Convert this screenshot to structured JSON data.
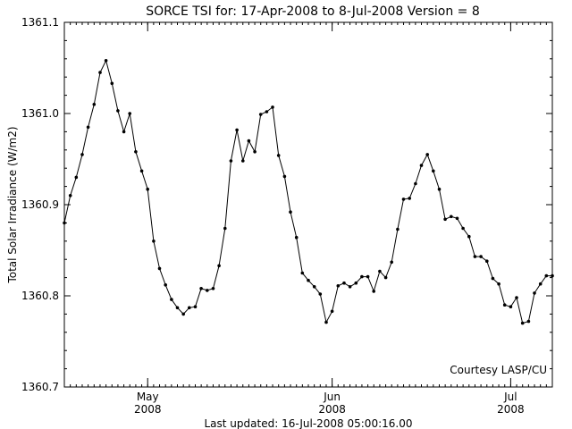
{
  "chart_data": {
    "type": "line",
    "title": "SORCE TSI for: 17-Apr-2008 to  8-Jul-2008 Version = 8",
    "ylabel": "Total Solar Irradiance (W/m2)",
    "xlabel": "",
    "footer": "Last updated: 16-Jul-2008 05:00:16.00",
    "annotation": "Courtesy LASP/CU",
    "x_range_dates": [
      "2008-04-17",
      "2008-07-08"
    ],
    "ylim": [
      1360.7,
      1361.1
    ],
    "y_ticks": [
      "1360.7",
      "1360.8",
      "1360.9",
      "1361.0",
      "1361.1"
    ],
    "x_ticks": [
      {
        "date": "2008-05-01",
        "month": "May",
        "year": "2008"
      },
      {
        "date": "2008-06-01",
        "month": "Jun",
        "year": "2008"
      },
      {
        "date": "2008-07-01",
        "month": "Jul",
        "year": "2008"
      }
    ],
    "grid": false,
    "legend": "none",
    "series": [
      {
        "x": [
          "2008-04-17",
          "2008-04-18",
          "2008-04-19",
          "2008-04-20",
          "2008-04-21",
          "2008-04-22",
          "2008-04-23",
          "2008-04-24",
          "2008-04-25",
          "2008-04-26",
          "2008-04-27",
          "2008-04-28",
          "2008-04-29",
          "2008-04-30",
          "2008-05-01",
          "2008-05-02",
          "2008-05-03",
          "2008-05-04",
          "2008-05-05",
          "2008-05-06",
          "2008-05-07",
          "2008-05-08",
          "2008-05-09",
          "2008-05-10",
          "2008-05-11",
          "2008-05-12",
          "2008-05-13",
          "2008-05-14",
          "2008-05-15",
          "2008-05-16",
          "2008-05-17",
          "2008-05-18",
          "2008-05-19",
          "2008-05-20",
          "2008-05-21",
          "2008-05-22",
          "2008-05-23",
          "2008-05-24",
          "2008-05-25",
          "2008-05-26",
          "2008-05-27",
          "2008-05-28",
          "2008-05-29",
          "2008-05-30",
          "2008-05-31",
          "2008-06-01",
          "2008-06-02",
          "2008-06-03",
          "2008-06-04",
          "2008-06-05",
          "2008-06-06",
          "2008-06-07",
          "2008-06-08",
          "2008-06-09",
          "2008-06-10",
          "2008-06-11",
          "2008-06-12",
          "2008-06-13",
          "2008-06-14",
          "2008-06-15",
          "2008-06-16",
          "2008-06-17",
          "2008-06-18",
          "2008-06-19",
          "2008-06-20",
          "2008-06-21",
          "2008-06-22",
          "2008-06-23",
          "2008-06-24",
          "2008-06-25",
          "2008-06-26",
          "2008-06-27",
          "2008-06-28",
          "2008-06-29",
          "2008-06-30",
          "2008-07-01",
          "2008-07-02",
          "2008-07-03",
          "2008-07-04",
          "2008-07-05",
          "2008-07-06",
          "2008-07-07",
          "2008-07-08"
        ],
        "y": [
          1360.88,
          1360.91,
          1360.93,
          1360.955,
          1360.985,
          1361.01,
          1361.045,
          1361.058,
          1361.033,
          1361.003,
          1360.98,
          1361.0,
          1360.958,
          1360.937,
          1360.917,
          1360.86,
          1360.83,
          1360.812,
          1360.796,
          1360.787,
          1360.78,
          1360.787,
          1360.788,
          1360.808,
          1360.806,
          1360.808,
          1360.833,
          1360.874,
          1360.948,
          1360.982,
          1360.948,
          1360.97,
          1360.958,
          1360.999,
          1361.002,
          1361.007,
          1360.954,
          1360.931,
          1360.892,
          1360.864,
          1360.825,
          1360.817,
          1360.81,
          1360.802,
          1360.771,
          1360.783,
          1360.811,
          1360.814,
          1360.81,
          1360.814,
          1360.821,
          1360.821,
          1360.805,
          1360.827,
          1360.82,
          1360.837,
          1360.873,
          1360.906,
          1360.907,
          1360.923,
          1360.943,
          1360.955,
          1360.937,
          1360.917,
          1360.884,
          1360.887,
          1360.885,
          1360.874,
          1360.865,
          1360.843,
          1360.843,
          1360.838,
          1360.819,
          1360.813,
          1360.79,
          1360.788,
          1360.798,
          1360.77,
          1360.772,
          1360.803,
          1360.813,
          1360.822,
          1360.822
        ]
      }
    ]
  }
}
